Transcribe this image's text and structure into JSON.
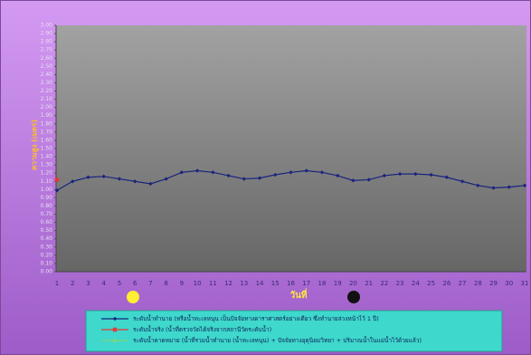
{
  "chart_data": {
    "type": "line",
    "xlabel": "วันที่",
    "ylabel": "ความสูง (เมตร)",
    "categories": [
      "1",
      "2",
      "3",
      "4",
      "5",
      "6",
      "7",
      "8",
      "9",
      "10",
      "11",
      "12",
      "13",
      "14",
      "15",
      "16",
      "17",
      "18",
      "19",
      "20",
      "21",
      "22",
      "23",
      "24",
      "25",
      "26",
      "27",
      "28",
      "29",
      "30",
      "31"
    ],
    "series": [
      {
        "name": "ระดับน้ำทำนาย (หรือน้ำทะเลหนุน เป็นปัจจัยทางดาราศาสตร์อย่างเดียว ซึ่งทำนายล่วงหน้าไว้ 1 ปี)",
        "color": "#1a237e",
        "values": [
          0.99,
          1.1,
          1.15,
          1.16,
          1.13,
          1.1,
          1.07,
          1.13,
          1.21,
          1.23,
          1.21,
          1.17,
          1.13,
          1.14,
          1.18,
          1.21,
          1.23,
          1.21,
          1.17,
          1.11,
          1.12,
          1.17,
          1.19,
          1.19,
          1.18,
          1.15,
          1.1,
          1.05,
          1.02,
          1.03,
          1.05
        ]
      },
      {
        "name": "ระดับน้ำจริง (น้ำที่ตรวจวัดได้จริงจากสถานีวัดระดับน้ำ)",
        "color": "#e53935",
        "values": [
          1.12,
          null,
          null,
          null,
          null,
          null,
          null,
          null,
          null,
          null,
          null,
          null,
          null,
          null,
          null,
          null,
          null,
          null,
          null,
          null,
          null,
          null,
          null,
          null,
          null,
          null,
          null,
          null,
          null,
          null,
          null
        ]
      },
      {
        "name": "ระดับน้ำคาดหมาย (น้ำที่รวมน้ำทำนาย (น้ำทะเลหนุน) + ปัจจัยทางอุตุนิยมวิทยา + ปริมาณน้ำในแม่น้ำไว้ด้วยแล้ว)",
        "color": "#7cd67c",
        "values": [
          null,
          null,
          null,
          null,
          null,
          null,
          null,
          null,
          null,
          null,
          null,
          null,
          null,
          null,
          null,
          null,
          null,
          null,
          null,
          null,
          null,
          null,
          null,
          null,
          null,
          null,
          null,
          null,
          null,
          null,
          null
        ]
      }
    ],
    "ylim": [
      0,
      3
    ],
    "yticks": [
      {
        "value": 0,
        "label": "0.00"
      },
      {
        "value": 0.1,
        "label": "0.10"
      },
      {
        "value": 0.2,
        "label": "0.20"
      },
      {
        "value": 0.3,
        "label": "0.30"
      },
      {
        "value": 0.4,
        "label": "0.40"
      },
      {
        "value": 0.5,
        "label": "0.50"
      },
      {
        "value": 0.6,
        "label": "0.60"
      },
      {
        "value": 0.7,
        "label": "0.70"
      },
      {
        "value": 0.8,
        "label": "0.80"
      },
      {
        "value": 0.9,
        "label": "0.90"
      },
      {
        "value": 1,
        "label": "1.00"
      },
      {
        "value": 1.1,
        "label": "1.10"
      },
      {
        "value": 1.2,
        "label": "1.20"
      },
      {
        "value": 1.3,
        "label": "1.30"
      },
      {
        "value": 1.4,
        "label": "1.40"
      },
      {
        "value": 1.5,
        "label": "1.50"
      },
      {
        "value": 1.6,
        "label": "1.60"
      },
      {
        "value": 1.7,
        "label": "1.70"
      },
      {
        "value": 1.8,
        "label": "1.80"
      },
      {
        "value": 1.9,
        "label": "1.90"
      },
      {
        "value": 2,
        "label": "2.00"
      },
      {
        "value": 2.1,
        "label": "2.10"
      },
      {
        "value": 2.2,
        "label": "2.20"
      },
      {
        "value": 2.3,
        "label": "2.30"
      },
      {
        "value": 2.4,
        "label": "2.40"
      },
      {
        "value": 2.5,
        "label": "2.50"
      },
      {
        "value": 2.6,
        "label": "2.60"
      },
      {
        "value": 2.7,
        "label": "2.70"
      },
      {
        "value": 2.8,
        "label": "2.80"
      },
      {
        "value": 2.9,
        "label": "2.90"
      },
      {
        "value": 3,
        "label": "3.00"
      }
    ],
    "grid": false
  }
}
